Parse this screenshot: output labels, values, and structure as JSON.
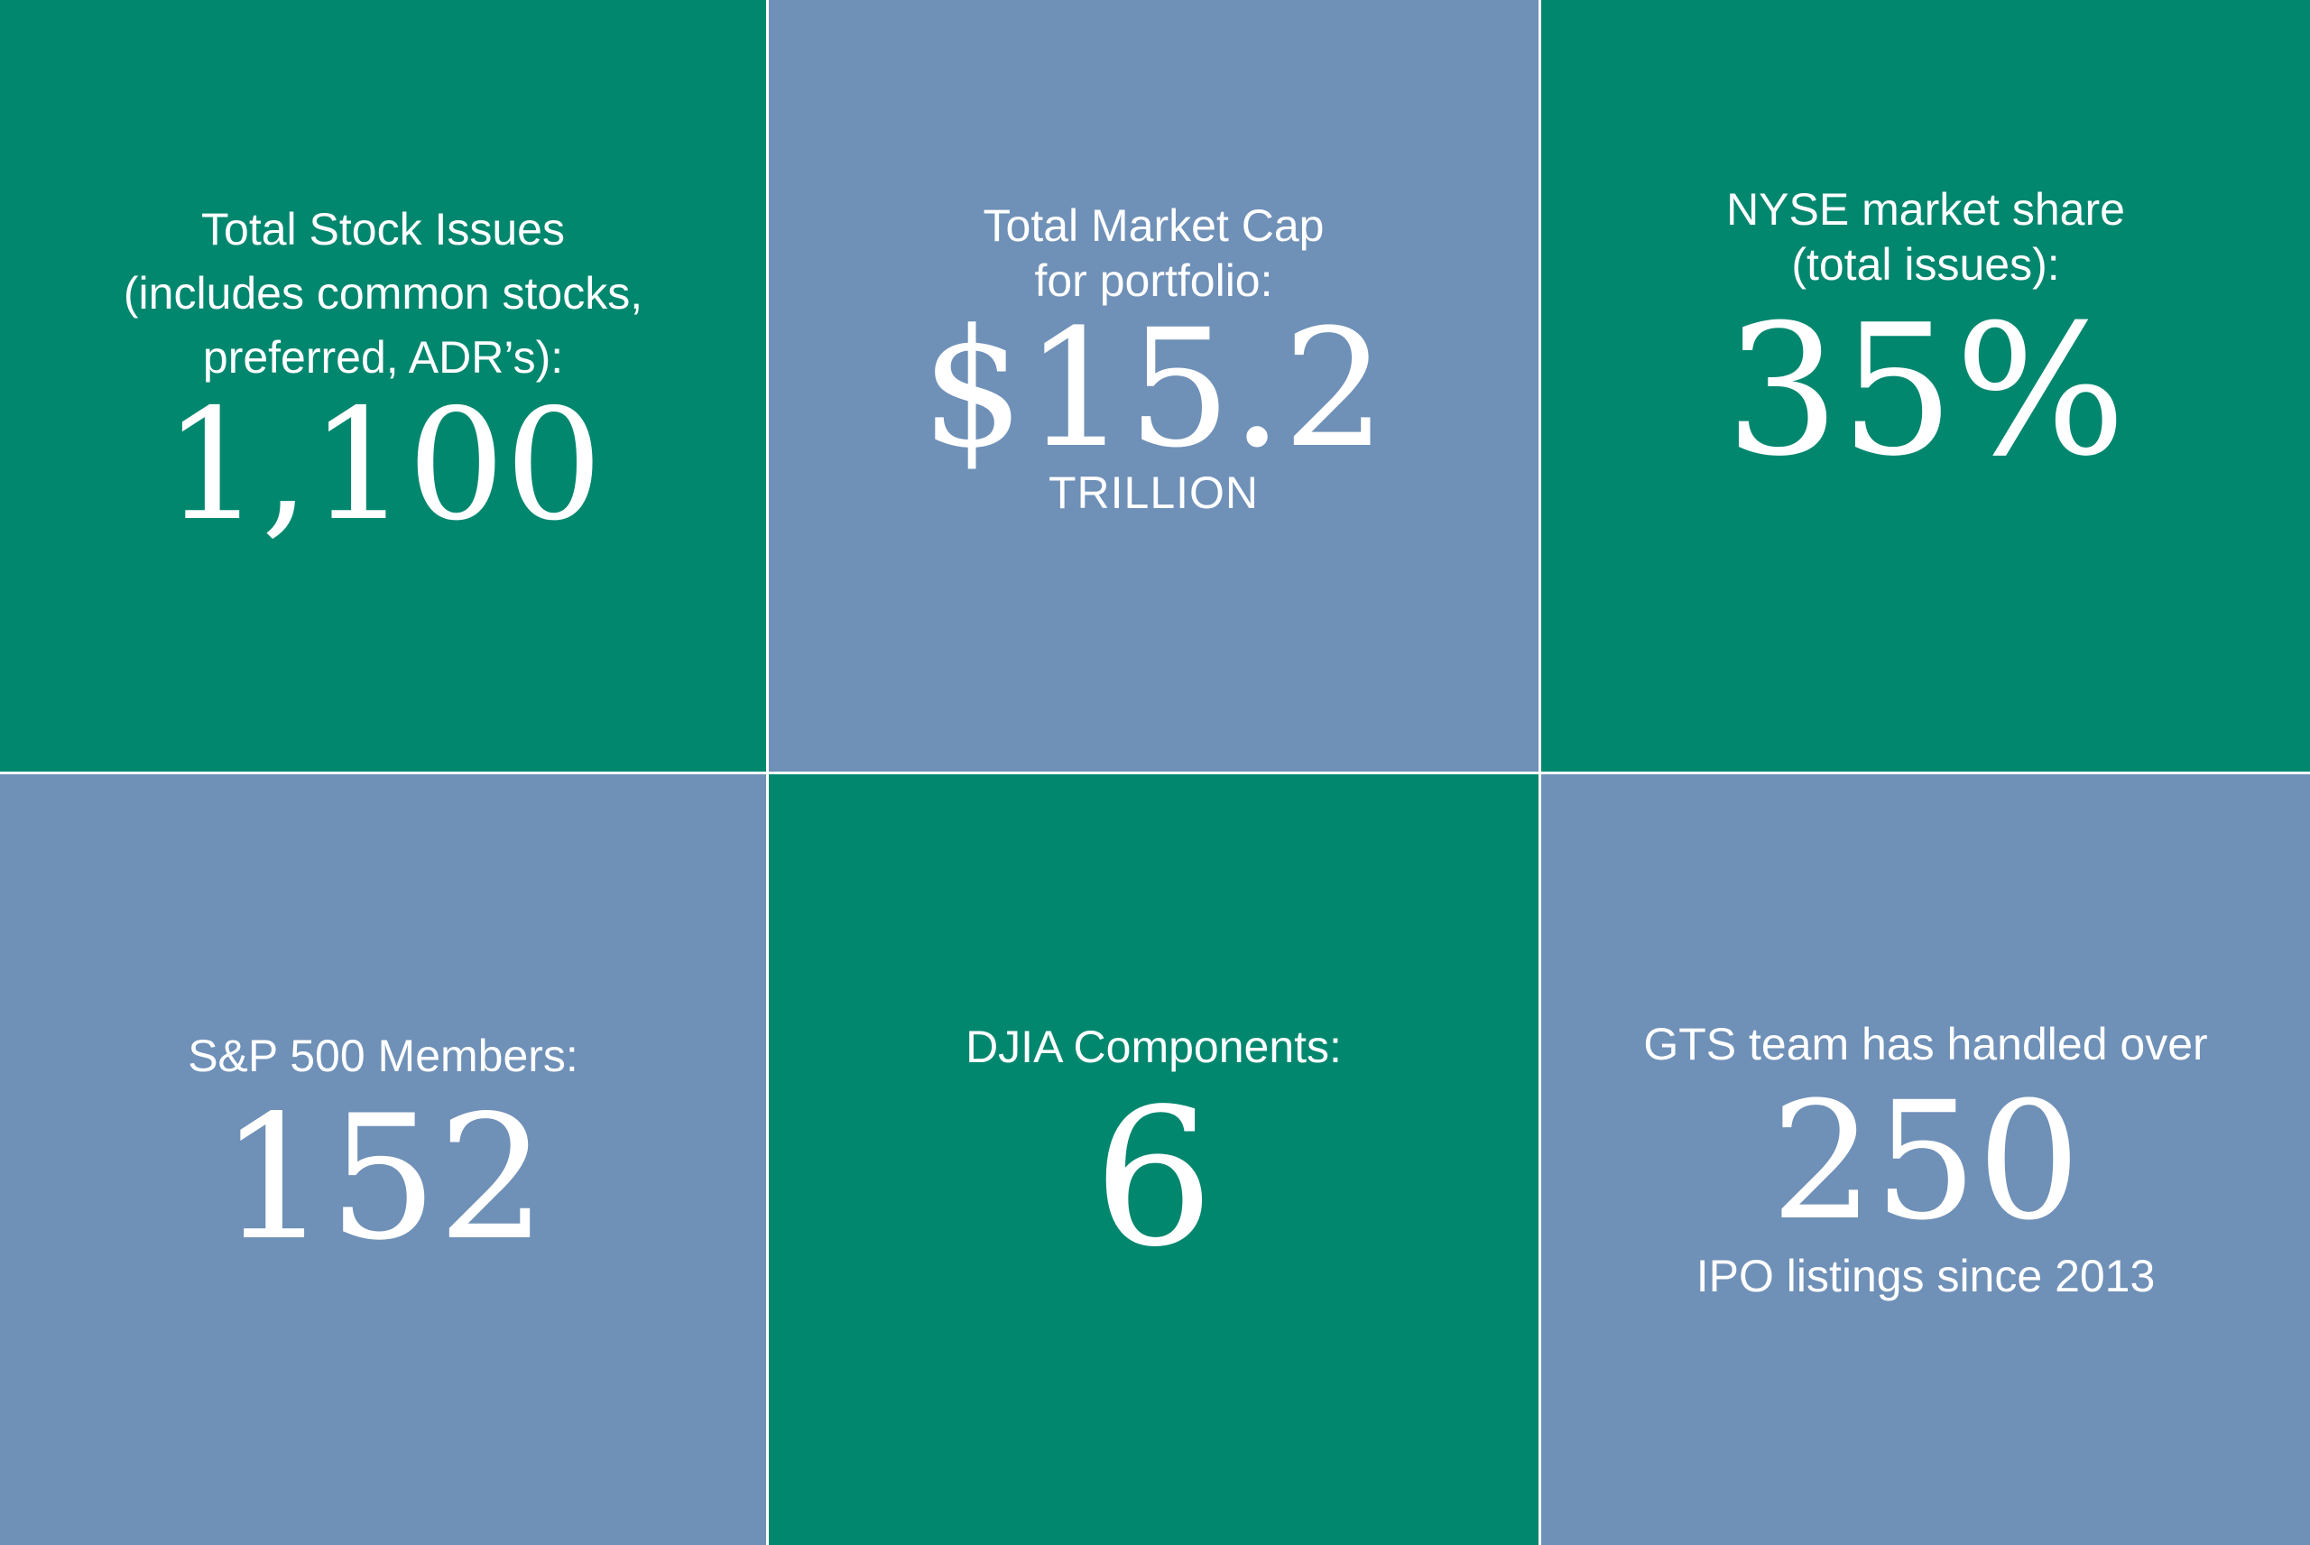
{
  "colors": {
    "green": "#02876f",
    "blue": "#6f90b7",
    "text": "#ffffff",
    "divider": "#ffffff"
  },
  "tiles": [
    {
      "label_lines": [
        "Total Stock Issues",
        "(includes common stocks,",
        "preferred, ADR’s):"
      ],
      "value": "1,100",
      "caption": ""
    },
    {
      "label_lines": [
        "Total Market Cap",
        "for portfolio:"
      ],
      "value": "$15.2",
      "caption": "TRILLION"
    },
    {
      "label_lines": [
        "NYSE market share",
        "(total issues):"
      ],
      "value": "35%",
      "caption": ""
    },
    {
      "label_lines": [
        "S&P 500 Members:"
      ],
      "value": "152",
      "caption": ""
    },
    {
      "label_lines": [
        "DJIA Components:"
      ],
      "value": "6",
      "caption": ""
    },
    {
      "label_lines": [
        "GTS team has handled over"
      ],
      "value": "250",
      "caption": "IPO listings since 2013"
    }
  ]
}
